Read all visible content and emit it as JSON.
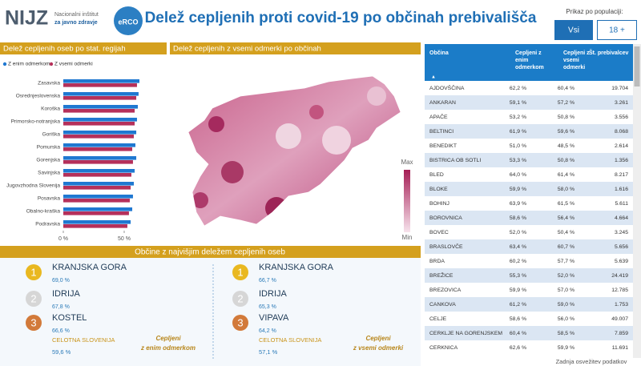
{
  "header": {
    "logo": "NIJZ",
    "institute_line1": "Nacionalni inštitut",
    "institute_line2": "za javno zdravje",
    "badge": "eRCO",
    "title": "Delež cepljenih proti covid-19 po občinah prebivališča",
    "filter_label": "Prikaz po populaciji:",
    "buttons": [
      "Vsi",
      "18 +"
    ]
  },
  "chart_data": {
    "type": "bar",
    "orientation": "horizontal",
    "title": "Delež cepljenih oseb po stat. regijah",
    "categories": [
      "Zasavska",
      "Osrednjeslovenska",
      "Koroška",
      "Primorsko-notranjska",
      "Goriška",
      "Pomurska",
      "Gorenjska",
      "Savinjska",
      "Jugovzhodna Slovenija",
      "Posavska",
      "Obalno-kraška",
      "Podravska"
    ],
    "series": [
      {
        "name": "Z enim odmerkom",
        "color": "#1f78d1",
        "values": [
          62.5,
          61.8,
          61.2,
          60.5,
          59.9,
          59.2,
          59.9,
          58.6,
          57.9,
          57.2,
          56.6,
          55.3
        ]
      },
      {
        "name": "Z vsemi odmerki",
        "color": "#b5305a",
        "values": [
          60.5,
          59.9,
          58.6,
          58.6,
          57.9,
          56.6,
          57.2,
          55.9,
          55.3,
          54.6,
          53.9,
          52.6
        ]
      }
    ],
    "xlim": [
      0,
      65
    ],
    "xticks": [
      {
        "value": 0,
        "label": "0 %"
      },
      {
        "value": 50,
        "label": "50 %"
      }
    ],
    "grid": false,
    "legend": "top-left"
  },
  "map": {
    "title": "Delež cepljenih z vsemi odmerki po občinah",
    "legend_max": "Max",
    "legend_min": "Min"
  },
  "top": {
    "title": "Občine z najvišjim deležem cepljenih oseb",
    "left": {
      "items": [
        {
          "rank": 1,
          "name": "KRANJSKA GORA",
          "value": "69,0 %"
        },
        {
          "rank": 2,
          "name": "IDRIJA",
          "value": "67,8 %"
        },
        {
          "rank": 3,
          "name": "KOSTEL",
          "value": "66,6 %"
        }
      ],
      "total_label": "CELOTNA SLOVENIJA",
      "total_value": "59,6 %",
      "note": "Cepljeni z enim odmerkom"
    },
    "right": {
      "items": [
        {
          "rank": 1,
          "name": "KRANJSKA GORA",
          "value": "66,7 %"
        },
        {
          "rank": 2,
          "name": "IDRIJA",
          "value": "65,3 %"
        },
        {
          "rank": 3,
          "name": "VIPAVA",
          "value": "64,2 %"
        }
      ],
      "total_label": "CELOTNA SLOVENIJA",
      "total_value": "57,1 %",
      "note": "Cepljeni z vsemi odmerki"
    }
  },
  "table": {
    "columns": [
      "Občina",
      "Cepljeni z enim odmerkom",
      "Cepljeni z vsemi odmerki",
      "Št. prebivalcev"
    ],
    "rows": [
      [
        "AJDOVŠČINA",
        "62,2 %",
        "60,4 %",
        "19.704"
      ],
      [
        "ANKARAN",
        "59,1 %",
        "57,2 %",
        "3.261"
      ],
      [
        "APAČE",
        "53,2 %",
        "50,8 %",
        "3.556"
      ],
      [
        "BELTINCI",
        "61,9 %",
        "59,6 %",
        "8.068"
      ],
      [
        "BENEDIKT",
        "51,0 %",
        "48,5 %",
        "2.614"
      ],
      [
        "BISTRICA OB SOTLI",
        "53,3 %",
        "50,8 %",
        "1.356"
      ],
      [
        "BLED",
        "64,0 %",
        "61,4 %",
        "8.217"
      ],
      [
        "BLOKE",
        "59,9 %",
        "58,0 %",
        "1.616"
      ],
      [
        "BOHINJ",
        "63,9 %",
        "61,5 %",
        "5.611"
      ],
      [
        "BOROVNICA",
        "58,6 %",
        "56,4 %",
        "4.664"
      ],
      [
        "BOVEC",
        "52,0 %",
        "50,4 %",
        "3.245"
      ],
      [
        "BRASLOVČE",
        "63,4 %",
        "60,7 %",
        "5.656"
      ],
      [
        "BRDA",
        "60,2 %",
        "57,7 %",
        "5.639"
      ],
      [
        "BREŽICE",
        "55,3 %",
        "52,0 %",
        "24.419"
      ],
      [
        "BREZOVICA",
        "59,9 %",
        "57,0 %",
        "12.785"
      ],
      [
        "CANKOVA",
        "61,2 %",
        "59,0 %",
        "1.753"
      ],
      [
        "CELJE",
        "58,6 %",
        "56,0 %",
        "49.007"
      ],
      [
        "CERKLJE NA GORENJSKEM",
        "60,4 %",
        "58,5 %",
        "7.859"
      ],
      [
        "CERKNICA",
        "62,6 %",
        "59,9 %",
        "11.691"
      ]
    ]
  },
  "footer": "Zadnja osvežitev podatkov"
}
